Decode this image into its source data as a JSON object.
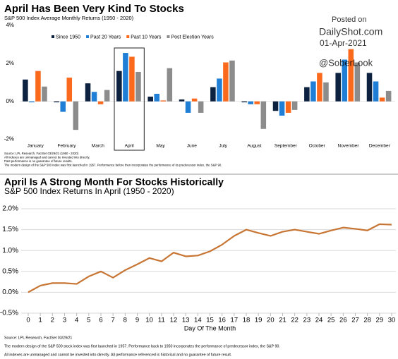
{
  "chart_data": [
    {
      "type": "bar",
      "title": "April Has Been Very Kind To Stocks",
      "subtitle": "S&P 500 Index Average Monthly Returns (1950 - 2020)",
      "categories": [
        "January",
        "February",
        "March",
        "April",
        "May",
        "June",
        "July",
        "August",
        "September",
        "October",
        "November",
        "December"
      ],
      "series": [
        {
          "name": "Since 1950",
          "color": "#0d2240",
          "values": [
            1.15,
            -0.05,
            0.95,
            1.6,
            0.25,
            0.1,
            0.75,
            -0.05,
            -0.5,
            0.75,
            1.5,
            1.5
          ]
        },
        {
          "name": "Past 20 Years",
          "color": "#1f7fd6",
          "values": [
            -0.05,
            -0.55,
            0.5,
            2.55,
            0.4,
            -0.6,
            1.2,
            -0.15,
            -0.75,
            1.05,
            2.2,
            1.05
          ]
        },
        {
          "name": "Past 10 Years",
          "color": "#fb6a1c",
          "values": [
            1.6,
            1.25,
            -0.15,
            2.35,
            0.05,
            0.15,
            2.05,
            -0.15,
            -0.6,
            1.5,
            2.75,
            0.2
          ]
        },
        {
          "name": "Post Election Years",
          "color": "#8c8c8c",
          "values": [
            0.78,
            -1.5,
            0.6,
            1.55,
            1.75,
            -0.6,
            2.15,
            -1.45,
            -0.45,
            1.0,
            2.05,
            0.55
          ]
        }
      ],
      "ylim": [
        -2.2,
        4
      ],
      "yticks": [
        {
          "value": -2,
          "label": "-2%"
        },
        {
          "value": 0,
          "label": "0%"
        },
        {
          "value": 2,
          "label": "2%"
        },
        {
          "value": 4,
          "label": "4%"
        }
      ],
      "grid": false,
      "highlight": "April",
      "notes": [
        "Source: LPL Research, FactSet 03/29/21 (1950 - 2020)",
        "All indexes are unmanaged and cannot be invested into directly.",
        "Past performance is no guarantee of future results.",
        "The modern design of the S&P 500 index was first launched in 1957. Performance before then incorporates the performance of its predecessor index, the S&P 90."
      ],
      "watermark": [
        "Posted on",
        "DailyShot.com",
        "01-Apr-2021",
        "@SoberLook"
      ]
    },
    {
      "type": "line",
      "title": "April Is A Strong Month For Stocks Historically",
      "subtitle": "S&P 500 Index Returns In April (1950 - 2020)",
      "x_label": "Day Of The Month",
      "x": [
        0,
        1,
        2,
        3,
        4,
        5,
        6,
        7,
        8,
        9,
        10,
        11,
        12,
        13,
        14,
        15,
        16,
        17,
        18,
        19,
        20,
        21,
        22,
        23,
        24,
        25,
        26,
        27,
        28,
        29,
        30
      ],
      "values": [
        0.0,
        0.16,
        0.22,
        0.22,
        0.2,
        0.38,
        0.5,
        0.35,
        0.53,
        0.67,
        0.82,
        0.74,
        0.95,
        0.86,
        0.88,
        0.98,
        1.14,
        1.35,
        1.5,
        1.42,
        1.35,
        1.45,
        1.5,
        1.45,
        1.4,
        1.48,
        1.55,
        1.52,
        1.48,
        1.63,
        1.62
      ],
      "color": "#c87533",
      "xlim": [
        0,
        30
      ],
      "xticks": [
        0,
        1,
        2,
        3,
        4,
        5,
        6,
        7,
        8,
        9,
        10,
        11,
        12,
        13,
        14,
        15,
        16,
        17,
        18,
        19,
        20,
        21,
        22,
        23,
        24,
        25,
        26,
        27,
        28,
        29,
        30
      ],
      "ylim": [
        -0.5,
        2.0
      ],
      "yticks": [
        {
          "value": -0.5,
          "label": "-0.5%"
        },
        {
          "value": 0,
          "label": "0.0%"
        },
        {
          "value": 0.5,
          "label": "0.5%"
        },
        {
          "value": 1.0,
          "label": "1.0%"
        },
        {
          "value": 1.5,
          "label": "1.5%"
        },
        {
          "value": 2.0,
          "label": "2.0%"
        }
      ],
      "grid": true,
      "notes": [
        "Source: LPL Research, FactSet 03/29/21",
        "The modern design of the S&P 500 stock index was first launched in 1957. Performance back to 1950 incorporates the performance of predecessor index, the S&P 90.",
        "All indexes are unmanaged and cannot be invested into directly. All performance referenced is historical and no guarantee of future result."
      ]
    }
  ]
}
